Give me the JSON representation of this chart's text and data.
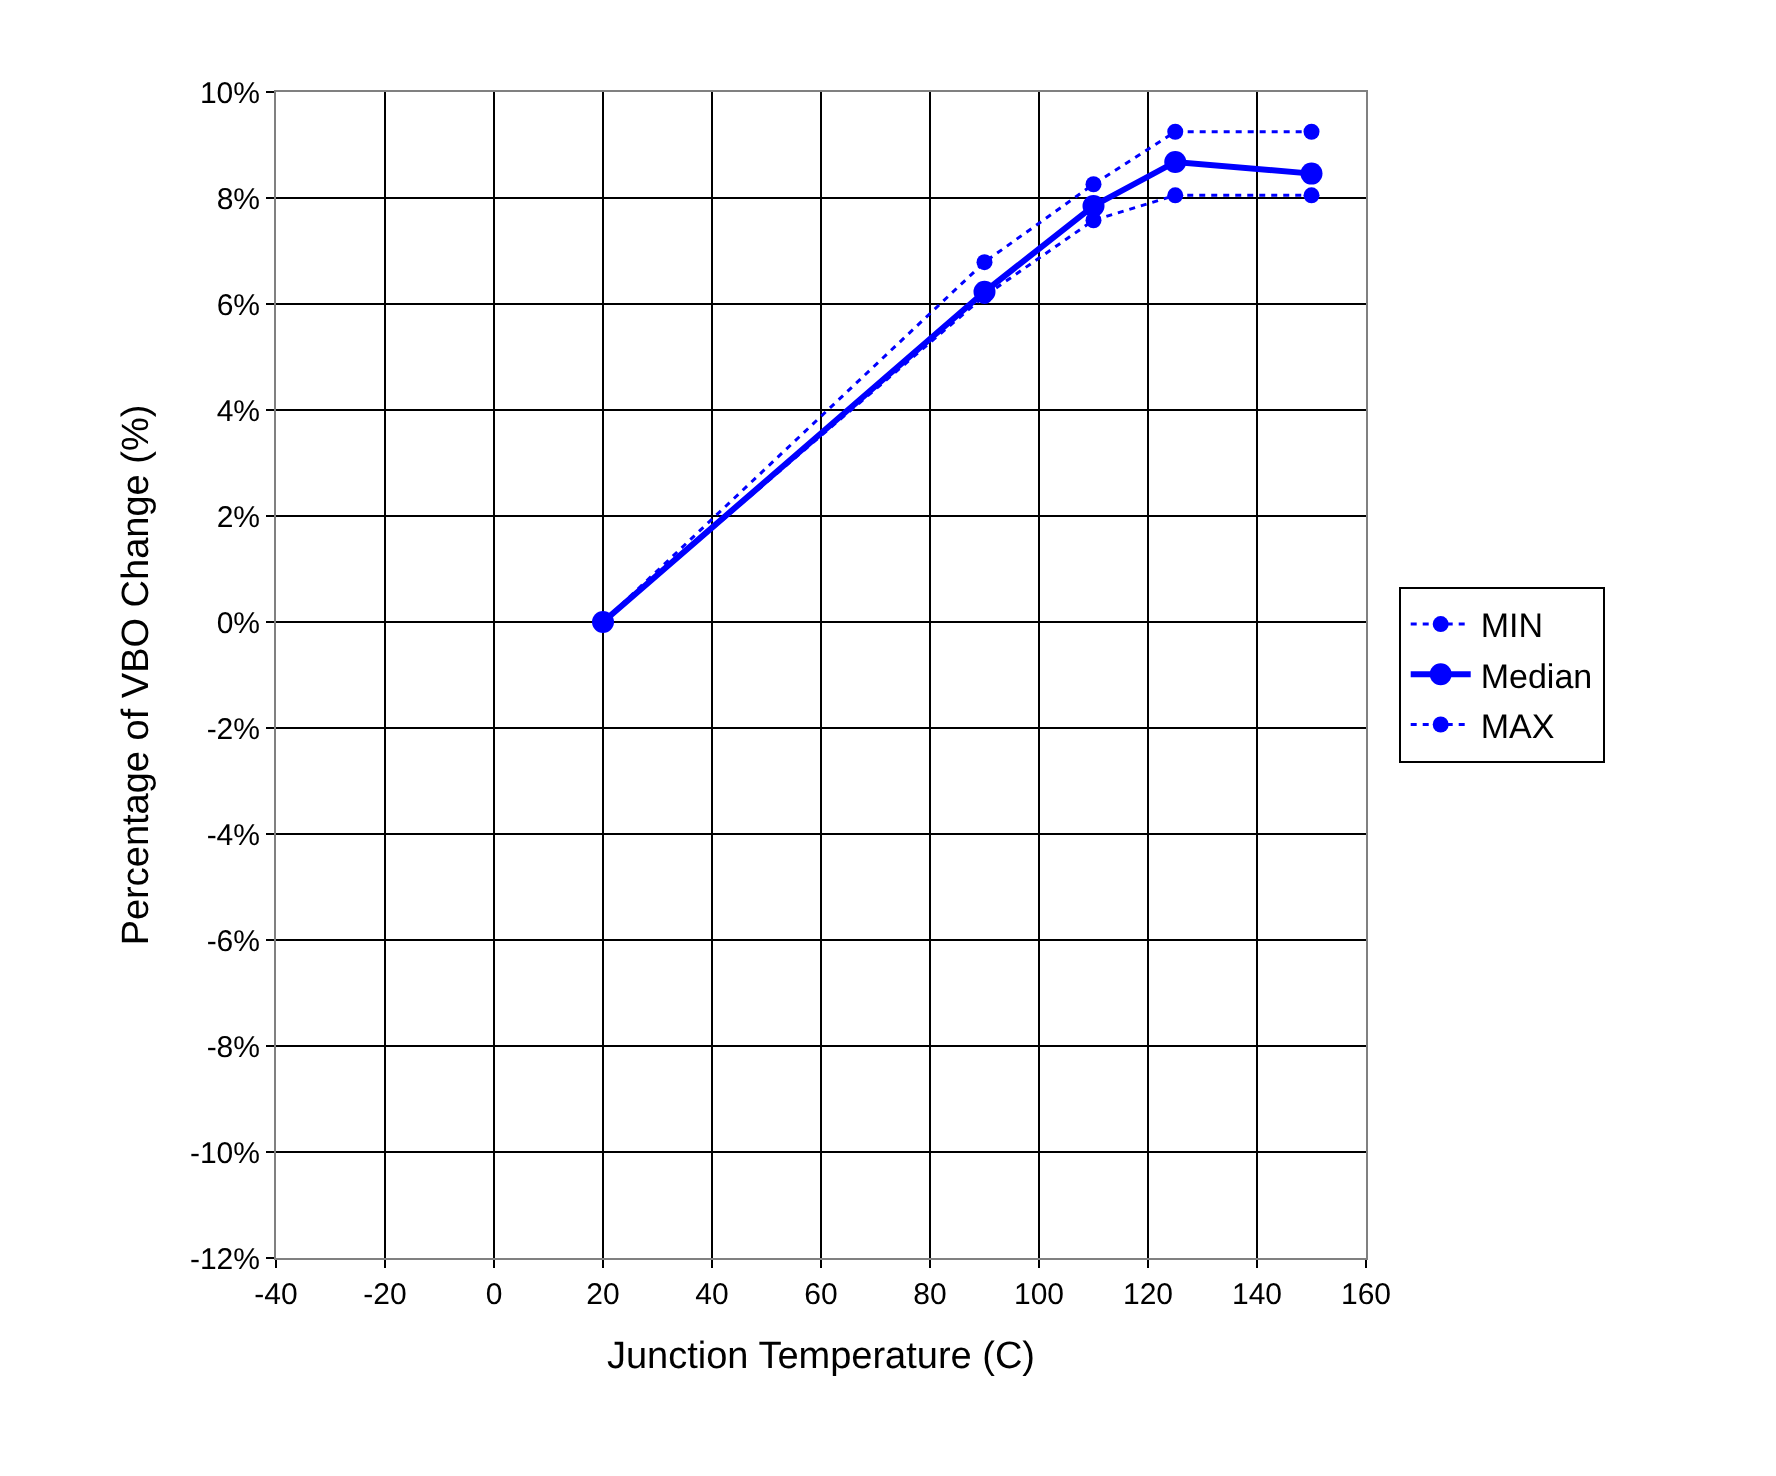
{
  "chart_data": {
    "type": "line",
    "xlabel": "Junction Temperature (C)",
    "ylabel": "Percentage of VBO Change (%)",
    "x": [
      20,
      90,
      110,
      125,
      150
    ],
    "series": [
      {
        "name": "MIN",
        "color": "#0000ff",
        "values": [
          0,
          6.15,
          7.58,
          8.05,
          8.05
        ],
        "line_style": "dotted"
      },
      {
        "name": "Median",
        "color": "#0000ff",
        "values": [
          0,
          6.23,
          7.85,
          8.68,
          8.46
        ],
        "line_style": "solid"
      },
      {
        "name": "MAX",
        "color": "#0000ff",
        "values": [
          0,
          6.79,
          8.26,
          9.25,
          9.25
        ],
        "line_style": "dotted"
      }
    ],
    "marker": "circle",
    "grid": true,
    "legend": "right",
    "xlim": [
      -40,
      160
    ],
    "xticks": [
      -40,
      -20,
      0,
      20,
      40,
      60,
      80,
      100,
      120,
      140,
      160
    ],
    "ylim": [
      -12,
      10
    ],
    "yticks": [
      {
        "value": -12,
        "label": "-12%"
      },
      {
        "value": -10,
        "label": "-10%"
      },
      {
        "value": -8,
        "label": "-8%"
      },
      {
        "value": -6,
        "label": "-6%"
      },
      {
        "value": -4,
        "label": "-4%"
      },
      {
        "value": -2,
        "label": "-2%"
      },
      {
        "value": 0,
        "label": "0%"
      },
      {
        "value": 2,
        "label": "2%"
      },
      {
        "value": 4,
        "label": "4%"
      },
      {
        "value": 6,
        "label": "6%"
      },
      {
        "value": 8,
        "label": "8%"
      },
      {
        "value": 10,
        "label": "10%"
      }
    ]
  }
}
